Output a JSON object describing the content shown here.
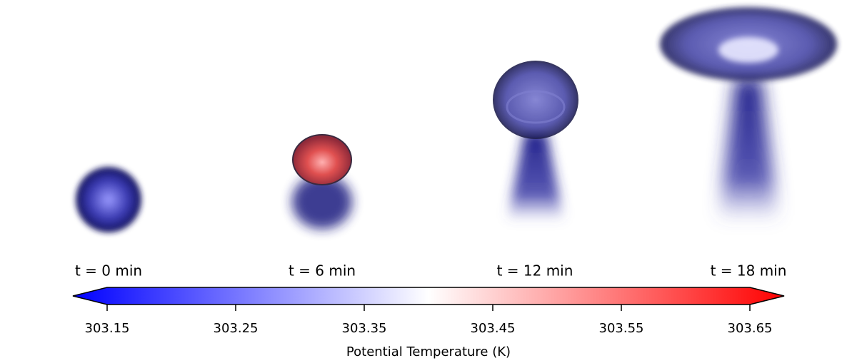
{
  "panels": [
    {
      "label": "t = 0 min"
    },
    {
      "label": "t = 6 min"
    },
    {
      "label": "t = 12 min"
    },
    {
      "label": "t = 18 min"
    }
  ],
  "colorbar": {
    "label": "Potential Temperature (K)",
    "lim": [
      303.15,
      303.65
    ],
    "ticks": [
      303.15,
      303.25,
      303.35,
      303.45,
      303.55,
      303.65
    ],
    "colors": [
      "#0000ff",
      "#ffffff",
      "#ff0000"
    ]
  }
}
